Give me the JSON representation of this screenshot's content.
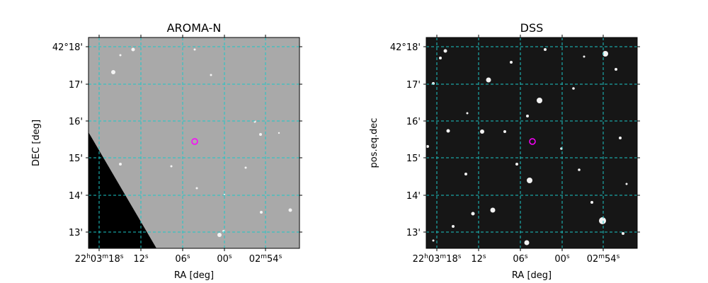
{
  "panels": [
    {
      "title": "AROMA-N",
      "xlabel": "RA [deg]",
      "ylabel": "DEC [deg]",
      "xticks": [
        "22h03m18s",
        "12s",
        "06s",
        "00s",
        "02m54s"
      ],
      "yticks": [
        "42°18'",
        "17'",
        "16'",
        "15'",
        "14'",
        "13'"
      ]
    },
    {
      "title": "DSS",
      "xlabel": "RA [deg]",
      "ylabel": "pos.eq.dec",
      "xticks": [
        "22h03m18s",
        "12s",
        "06s",
        "00s",
        "02m54s"
      ],
      "yticks": [
        "42°18'",
        "17'",
        "16'",
        "15'",
        "14'",
        "13'"
      ]
    }
  ]
}
